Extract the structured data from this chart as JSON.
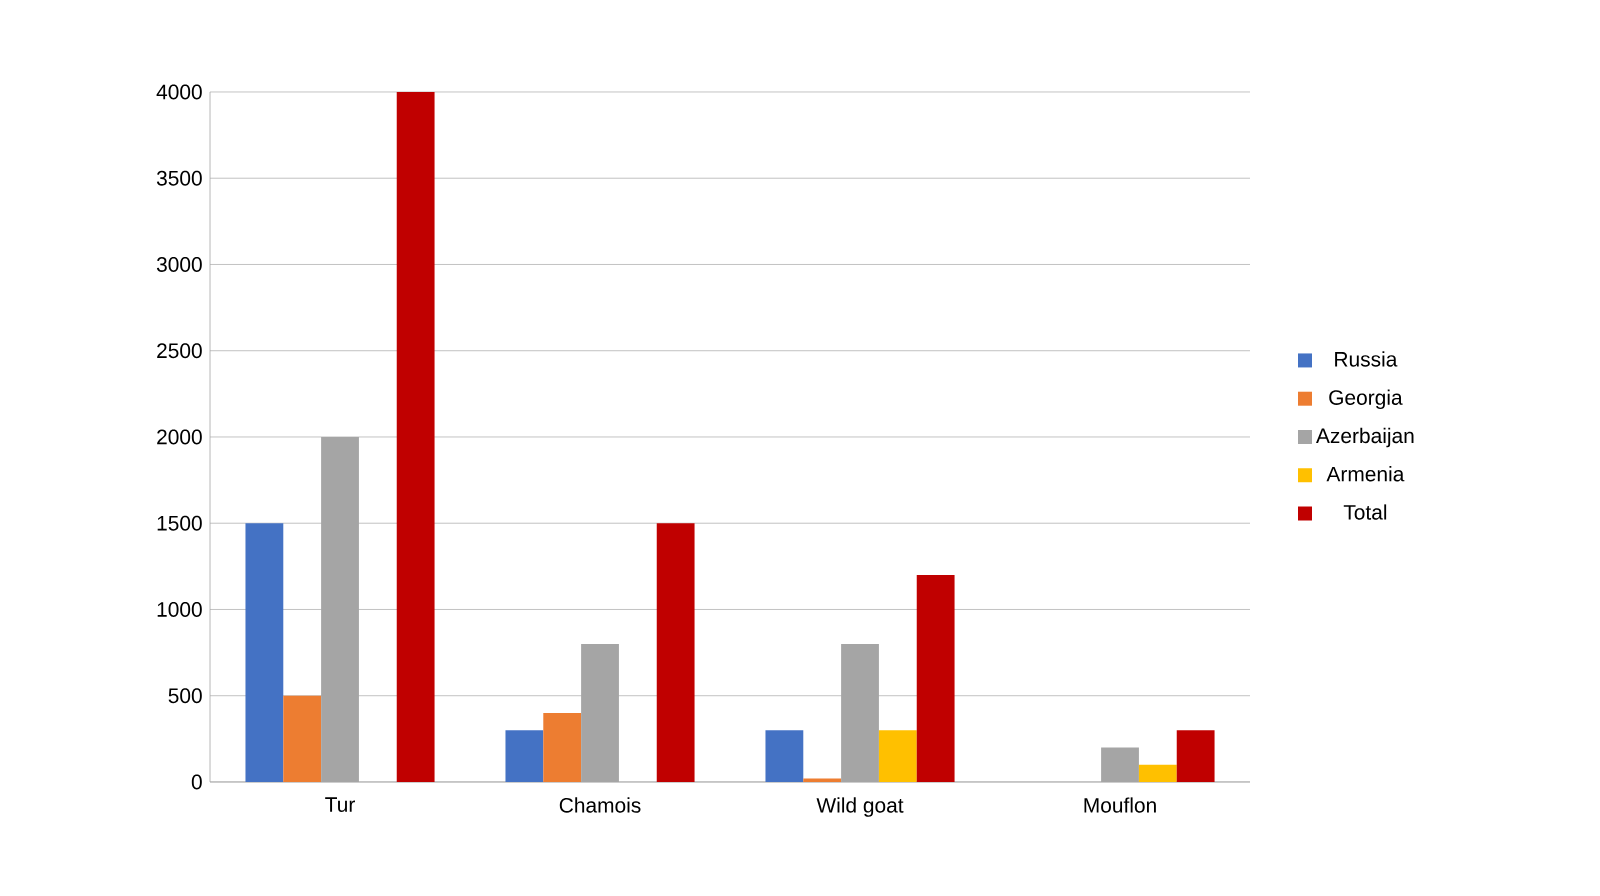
{
  "chart_data": {
    "type": "bar",
    "categories": [
      "Tur",
      "Chamois",
      "Wild goat",
      "Mouflon"
    ],
    "series": [
      {
        "name": "Russia",
        "color": "#4472c4",
        "values": [
          1500,
          300,
          300,
          null
        ]
      },
      {
        "name": "Georgia",
        "color": "#ed7d31",
        "values": [
          500,
          400,
          20,
          null
        ]
      },
      {
        "name": "Azerbaijan",
        "color": "#a5a5a5",
        "values": [
          2000,
          800,
          800,
          200
        ]
      },
      {
        "name": "Armenia",
        "color": "#ffc000",
        "values": [
          null,
          null,
          300,
          100
        ]
      },
      {
        "name": "Total",
        "color": "#c00000",
        "values": [
          4000,
          1500,
          1200,
          300
        ]
      }
    ],
    "ylim": [
      0,
      4000
    ],
    "yticks": [
      0,
      500,
      1000,
      1500,
      2000,
      2500,
      3000,
      3500,
      4000
    ],
    "grid": "y",
    "legend": "right"
  }
}
